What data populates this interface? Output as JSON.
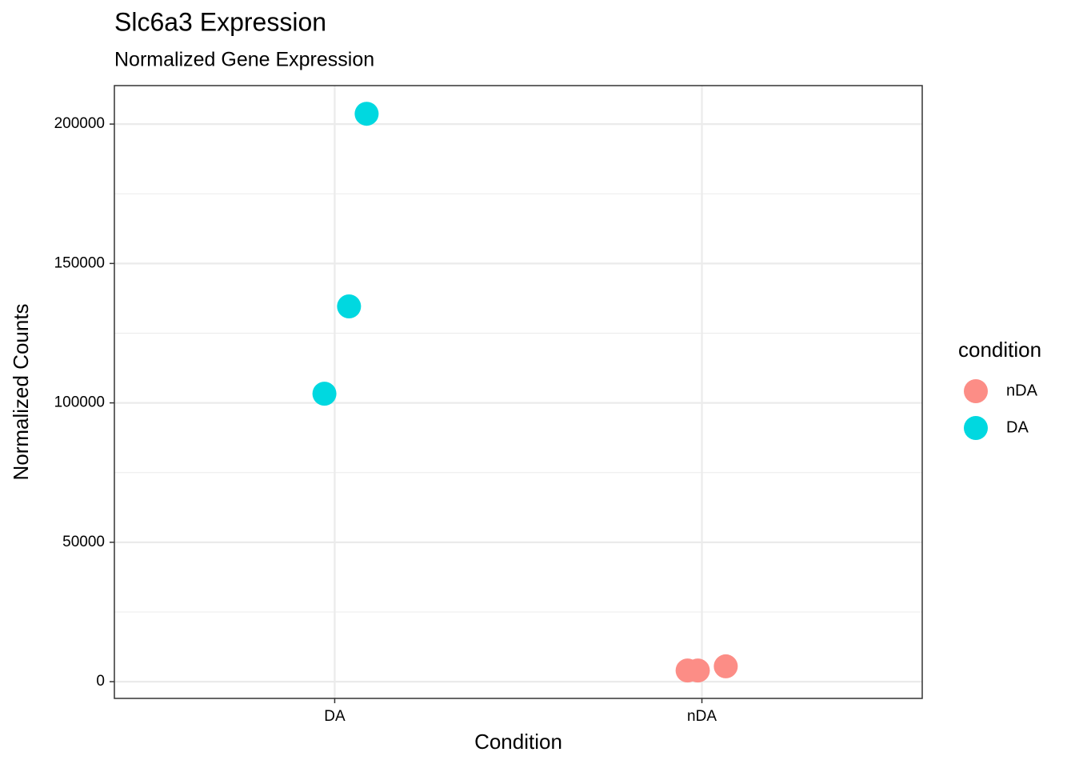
{
  "chart_data": {
    "type": "scatter",
    "title": "Slc6a3 Expression",
    "subtitle": "Normalized Gene Expression",
    "x_label": "Condition",
    "y_label": "Normalized Counts",
    "legend_title": "condition",
    "xlim": [
      0.4,
      2.6
    ],
    "xticks": [
      {
        "value": 1,
        "label": "DA"
      },
      {
        "value": 2,
        "label": "nDA"
      }
    ],
    "ylim": [
      -6000,
      213800
    ],
    "yticks": [
      0,
      50000,
      100000,
      150000,
      200000
    ],
    "grid": true,
    "legend_position": "right",
    "series": [
      {
        "name": "nDA",
        "color": "#FC8D86",
        "x": [
          1.961,
          1.989,
          2.065
        ],
        "values": [
          4000,
          4000,
          5500
        ]
      },
      {
        "name": "DA",
        "color": "#00D8E0",
        "x": [
          0.972,
          1.039,
          1.087
        ],
        "values": [
          103300,
          134600,
          203700
        ]
      }
    ]
  }
}
